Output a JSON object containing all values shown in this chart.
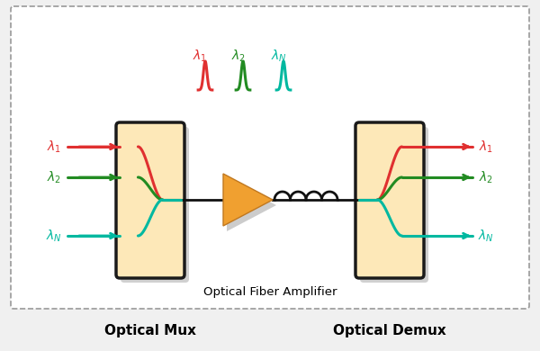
{
  "bg_color": "#f0f0f0",
  "inner_bg": "#ffffff",
  "border_color": "#999999",
  "title_bottom": "Optical Fiber Amplifier",
  "label_mux": "Optical Mux",
  "label_demux": "Optical Demux",
  "box_fill": "#fde8b8",
  "box_edge": "#1a1a1a",
  "shadow_color": "#aaaaaa",
  "colors": {
    "red": "#e03030",
    "green": "#228B22",
    "teal": "#00b8a0"
  },
  "amplifier_fill": "#f0a030",
  "amplifier_edge": "#c07820",
  "coil_color": "#111111",
  "fiber_line_color": "#111111"
}
